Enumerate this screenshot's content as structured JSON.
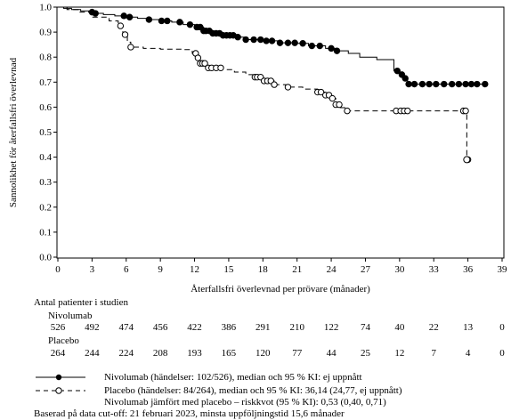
{
  "chart_data": {
    "type": "line",
    "ylabel": "Sannolikhet för återfallsfri överlevnad",
    "xlabel": "Återfallsfri överlevnad per prövare (månader)",
    "xlim": [
      0,
      39
    ],
    "ylim": [
      0.0,
      1.0
    ],
    "x_ticks": [
      0,
      3,
      6,
      9,
      12,
      15,
      18,
      21,
      24,
      27,
      30,
      33,
      36,
      39
    ],
    "y_ticks": [
      0.0,
      0.1,
      0.2,
      0.3,
      0.4,
      0.5,
      0.6,
      0.7,
      0.8,
      0.9,
      1.0
    ],
    "y_tick_labels": [
      "0.0",
      "0.1",
      "0.2",
      "0.3",
      "0.4",
      "0.5",
      "0.6",
      "0.7",
      "0.8",
      "0.9",
      "1.0"
    ],
    "grid": false,
    "series": [
      {
        "name": "Nivolumab",
        "line_style": "solid",
        "marker": "filled-circle",
        "color": "#000000",
        "steps": [
          [
            0,
            1.0
          ],
          [
            0.5,
            0.995
          ],
          [
            1.2,
            0.99
          ],
          [
            2.0,
            0.985
          ],
          [
            2.7,
            0.98
          ],
          [
            3.2,
            0.975
          ],
          [
            4.0,
            0.97
          ],
          [
            5.0,
            0.965
          ],
          [
            6.0,
            0.96
          ],
          [
            7.0,
            0.955
          ],
          [
            8.0,
            0.95
          ],
          [
            9.0,
            0.945
          ],
          [
            10.0,
            0.94
          ],
          [
            11.0,
            0.93
          ],
          [
            12.0,
            0.92
          ],
          [
            12.8,
            0.905
          ],
          [
            13.6,
            0.895
          ],
          [
            14.5,
            0.887
          ],
          [
            15.5,
            0.88
          ],
          [
            16.5,
            0.87
          ],
          [
            18.0,
            0.865
          ],
          [
            19.5,
            0.857
          ],
          [
            21.0,
            0.855
          ],
          [
            22.0,
            0.845
          ],
          [
            23.5,
            0.835
          ],
          [
            24.5,
            0.825
          ],
          [
            25.5,
            0.815
          ],
          [
            26.5,
            0.8
          ],
          [
            28.0,
            0.79
          ],
          [
            29.5,
            0.745
          ],
          [
            30.0,
            0.73
          ],
          [
            30.3,
            0.715
          ],
          [
            30.7,
            0.692
          ],
          [
            37.5,
            0.692
          ]
        ],
        "censor_x": [
          3.0,
          3.3,
          5.8,
          6.3,
          8.0,
          9.1,
          9.6,
          10.7,
          11.6,
          12.2,
          12.5,
          12.8,
          13.0,
          13.3,
          13.6,
          13.9,
          14.2,
          14.5,
          14.8,
          15.1,
          15.4,
          15.8,
          16.5,
          17.2,
          17.8,
          18.3,
          18.8,
          19.5,
          20.2,
          20.8,
          21.5,
          22.3,
          23.0,
          24.0,
          24.5,
          29.8,
          30.2,
          30.5,
          30.8,
          31.3,
          32.0,
          32.6,
          33.2,
          33.9,
          34.6,
          35.2,
          35.8,
          36.3,
          36.8,
          37.5
        ]
      },
      {
        "name": "Placebo",
        "line_style": "dashed",
        "marker": "open-circle",
        "color": "#000000",
        "steps": [
          [
            0,
            1.0
          ],
          [
            0.8,
            0.99
          ],
          [
            1.8,
            0.98
          ],
          [
            3.0,
            0.96
          ],
          [
            4.5,
            0.945
          ],
          [
            5.3,
            0.925
          ],
          [
            5.7,
            0.89
          ],
          [
            6.1,
            0.86
          ],
          [
            6.4,
            0.84
          ],
          [
            7.5,
            0.835
          ],
          [
            9.0,
            0.832
          ],
          [
            11.0,
            0.83
          ],
          [
            11.8,
            0.815
          ],
          [
            12.2,
            0.797
          ],
          [
            12.5,
            0.775
          ],
          [
            13.0,
            0.757
          ],
          [
            14.5,
            0.75
          ],
          [
            15.5,
            0.74
          ],
          [
            16.5,
            0.73
          ],
          [
            17.3,
            0.72
          ],
          [
            18.0,
            0.705
          ],
          [
            19.0,
            0.69
          ],
          [
            20.0,
            0.68
          ],
          [
            21.5,
            0.672
          ],
          [
            22.8,
            0.66
          ],
          [
            23.5,
            0.648
          ],
          [
            24.0,
            0.635
          ],
          [
            24.4,
            0.61
          ],
          [
            24.8,
            0.598
          ],
          [
            25.2,
            0.585
          ],
          [
            35.7,
            0.585
          ],
          [
            35.9,
            0.39
          ]
        ],
        "censor_x": [
          5.5,
          5.9,
          6.4,
          12.1,
          12.3,
          12.5,
          12.7,
          12.9,
          13.2,
          13.5,
          13.9,
          14.3,
          17.3,
          17.5,
          17.8,
          18.1,
          18.4,
          18.7,
          19.0,
          20.2,
          22.8,
          23.1,
          23.5,
          23.8,
          24.1,
          24.4,
          24.7,
          25.4,
          29.7,
          30.1,
          30.4,
          30.7,
          35.6,
          35.8,
          36.0
        ]
      }
    ]
  },
  "at_risk": {
    "title": "Antal patienter i studien",
    "rows": [
      {
        "label": "Nivolumab",
        "values": [
          "526",
          "492",
          "474",
          "456",
          "422",
          "386",
          "291",
          "210",
          "122",
          "74",
          "40",
          "22",
          "13",
          "0"
        ]
      },
      {
        "label": "Placebo",
        "values": [
          "264",
          "244",
          "224",
          "208",
          "193",
          "165",
          "120",
          "77",
          "44",
          "25",
          "12",
          "7",
          "4",
          "0"
        ]
      }
    ],
    "times": [
      0,
      3,
      6,
      9,
      12,
      15,
      18,
      21,
      24,
      27,
      30,
      33,
      36,
      39
    ]
  },
  "legend": {
    "items": [
      {
        "text": "Nivolumab (händelser: 102/526), median och 95 % KI: ej uppnått"
      },
      {
        "text": "Placebo (händelser: 84/264), median och 95 % KI: 36,14 (24,77, ej uppnått)"
      }
    ],
    "hr_text": "Nivolumab jämfört med placebo – riskkvot (95 % KI): 0,53 (0,40, 0,71)"
  },
  "footnote": "Baserad på data cut-off: 21 februari 2023, minsta uppföljningstid 15,6 månader"
}
